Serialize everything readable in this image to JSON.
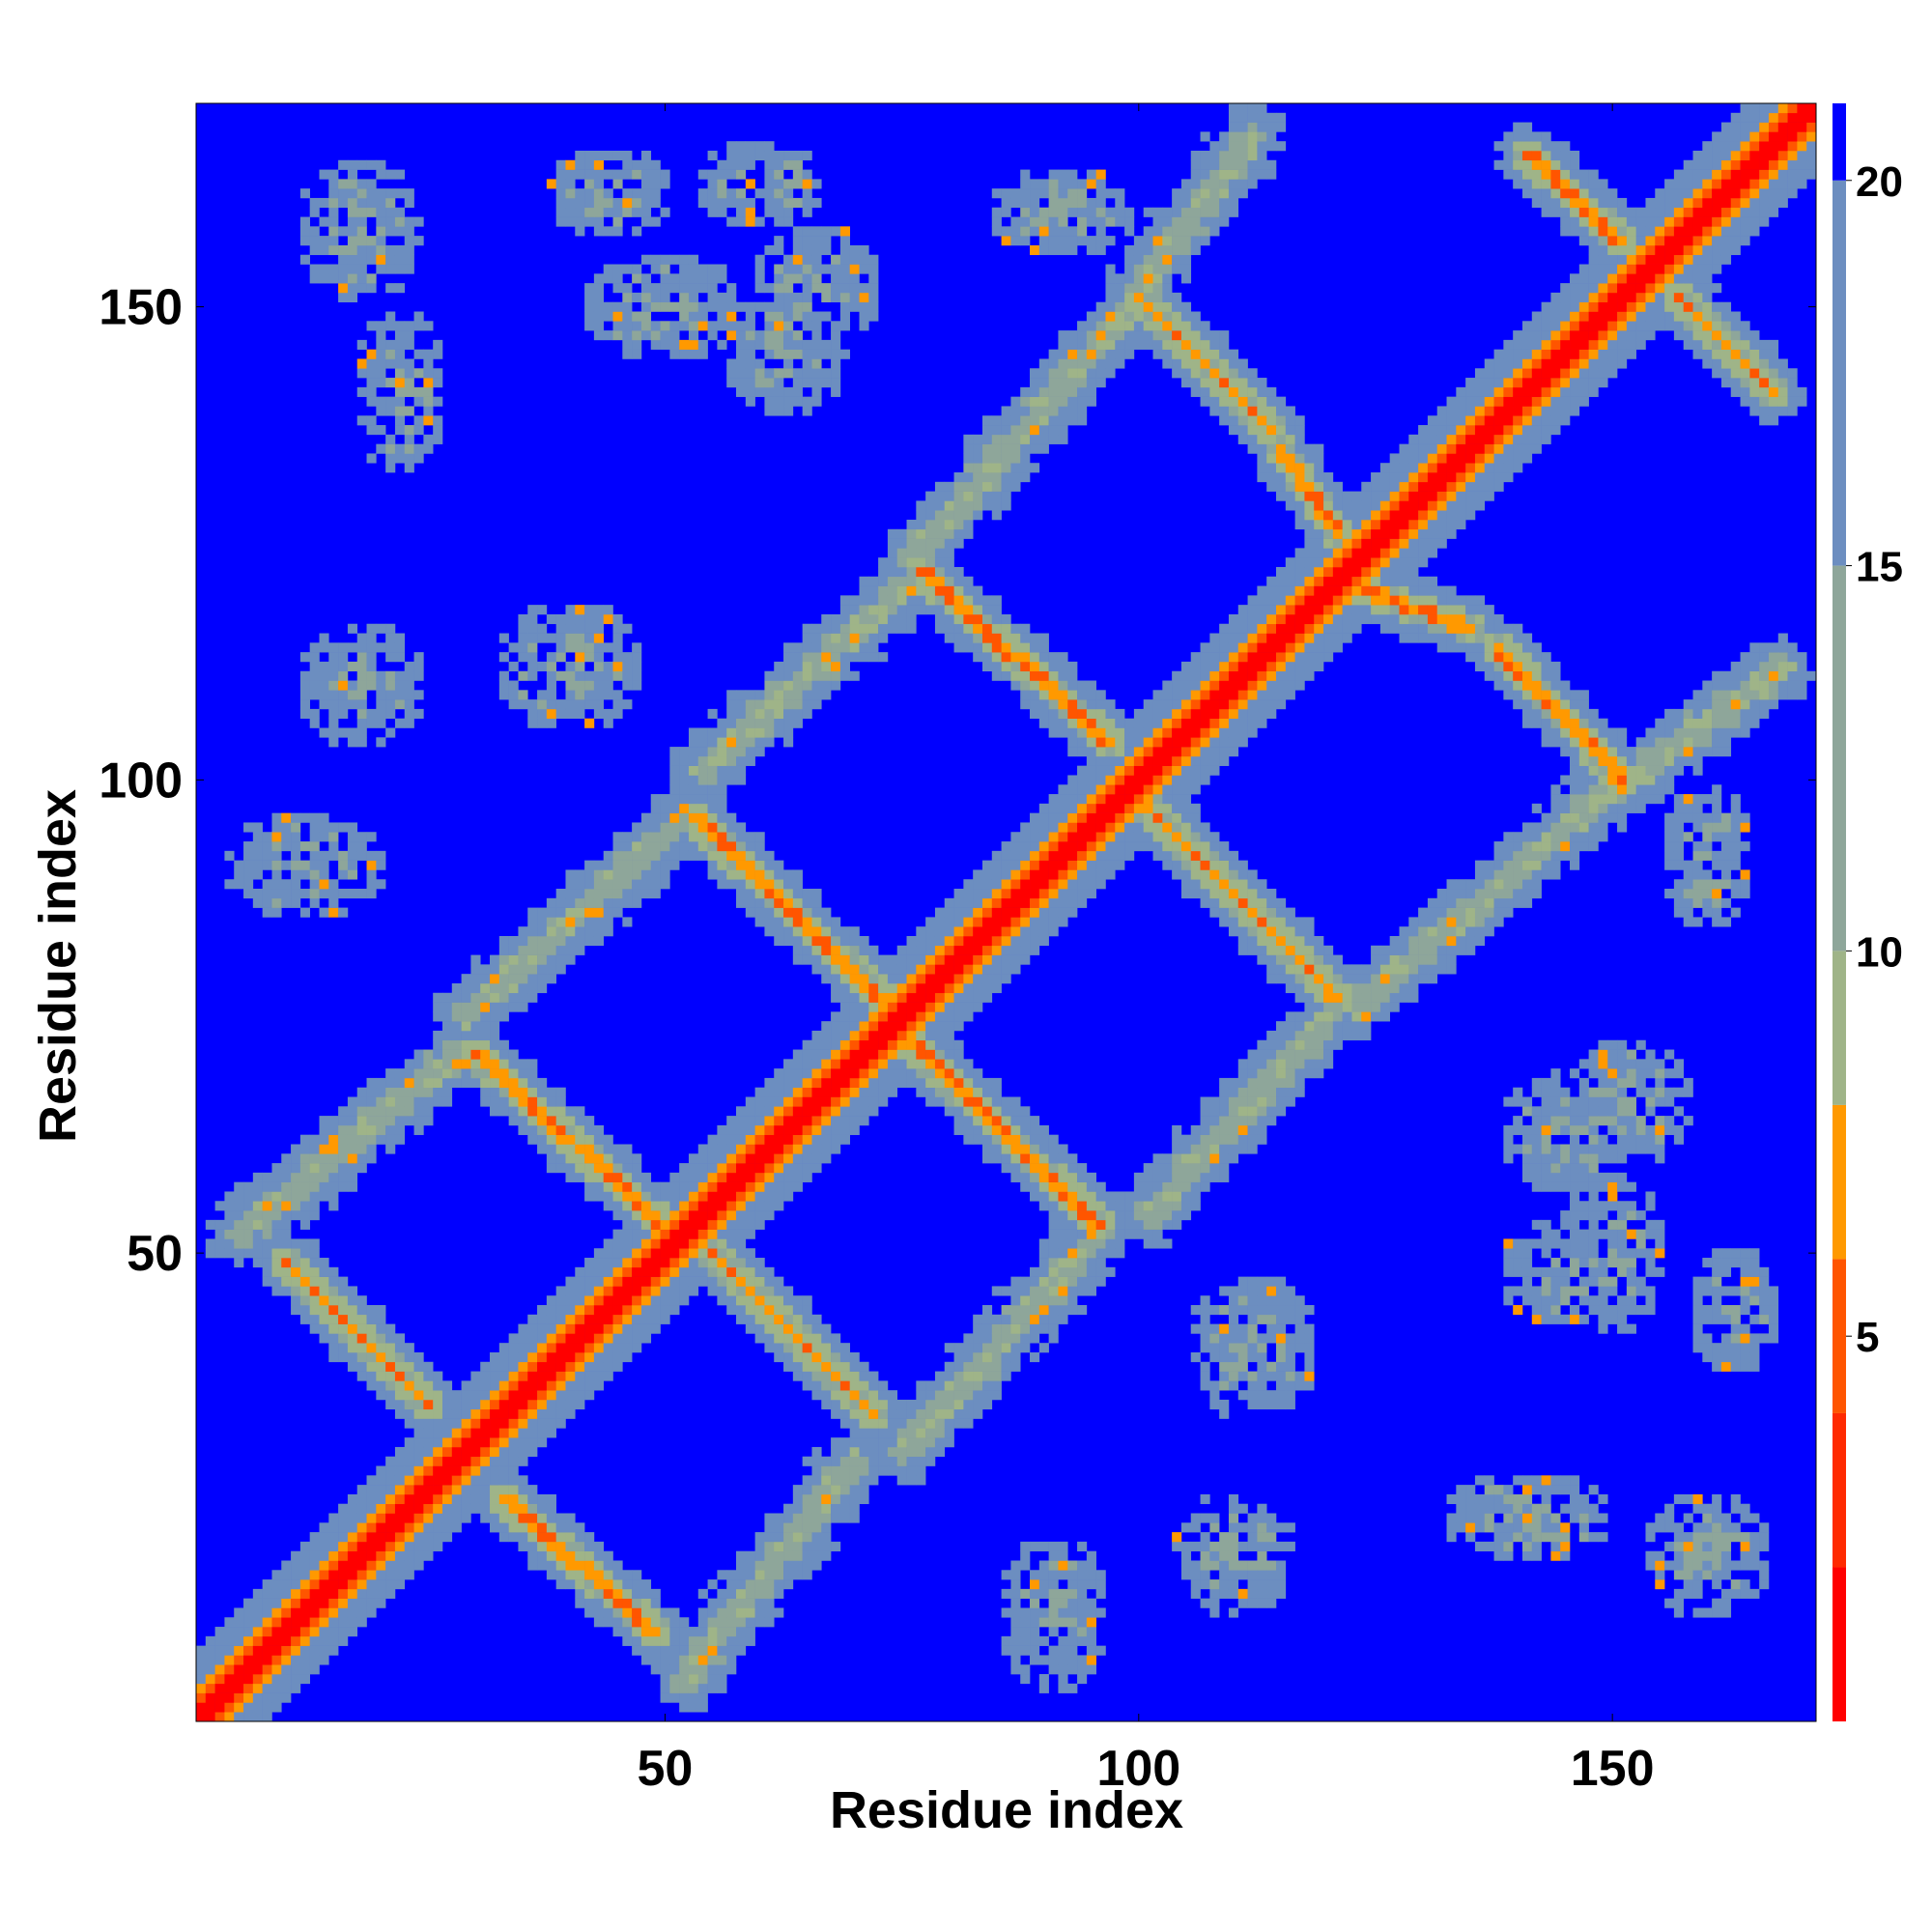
{
  "chart_data": {
    "type": "heatmap",
    "title": "",
    "xlabel": "Residue index",
    "ylabel": "Residue index",
    "xlim": [
      1,
      171
    ],
    "ylim": [
      1,
      171
    ],
    "x_ticks": [
      50,
      100,
      150
    ],
    "y_ticks": [
      50,
      100,
      150
    ],
    "colorbar": {
      "ticks": [
        5,
        10,
        15,
        20
      ],
      "range": [
        0,
        21
      ],
      "colors": [
        {
          "max": 2,
          "color": "#ff0000"
        },
        {
          "max": 4,
          "color": "#ff2a00"
        },
        {
          "max": 6,
          "color": "#ff5500"
        },
        {
          "max": 8,
          "color": "#ff9900"
        },
        {
          "max": 10,
          "color": "#9fb488"
        },
        {
          "max": 15,
          "color": "#8ea69a"
        },
        {
          "max": 20,
          "color": "#6c8ec0"
        },
        {
          "max": 21,
          "color": "#0000ff"
        }
      ]
    },
    "diagonal": {
      "from": 1,
      "to": 171
    },
    "hairpin_turns": [
      {
        "x": 23,
        "y": 23,
        "strand": 13
      },
      {
        "x": 52,
        "y": 52,
        "strand": 20
      },
      {
        "x": 74,
        "y": 74,
        "strand": 22
      },
      {
        "x": 99,
        "y": 99,
        "strand": 25
      },
      {
        "x": 122,
        "y": 122,
        "strand": 28
      },
      {
        "x": 153,
        "y": 153,
        "strand": 25
      }
    ],
    "antiparallel_bands": [
      {
        "from": [
          10,
          49
        ],
        "to": [
          25,
          34
        ]
      },
      {
        "from": [
          33,
          24
        ],
        "to": [
          49,
          10
        ]
      },
      {
        "from": [
          30,
          71
        ],
        "to": [
          51,
          52
        ]
      },
      {
        "from": [
          53,
          96
        ],
        "to": [
          74,
          76
        ]
      },
      {
        "from": [
          54,
          51
        ],
        "to": [
          72,
          33
        ]
      },
      {
        "from": [
          77,
          122
        ],
        "to": [
          97,
          104
        ]
      },
      {
        "from": [
          76,
          72
        ],
        "to": [
          96,
          53
        ]
      },
      {
        "from": [
          100,
          151
        ],
        "to": [
          114,
          137
        ]
      },
      {
        "from": [
          101,
          97
        ],
        "to": [
          121,
          77
        ]
      },
      {
        "from": [
          115,
          135
        ],
        "to": [
          121,
          126
        ]
      },
      {
        "from": [
          124,
          120
        ],
        "to": [
          135,
          116
        ]
      },
      {
        "from": [
          138,
          114
        ],
        "to": [
          151,
          100
        ]
      },
      {
        "from": [
          141,
          166
        ],
        "to": [
          151,
          157
        ]
      },
      {
        "from": [
          157,
          151
        ],
        "to": [
          167,
          141
        ]
      }
    ],
    "parallel_bands": [
      {
        "from": [
          5,
          52
        ],
        "to": [
          28,
          71
        ]
      },
      {
        "from": [
          29,
          75
        ],
        "to": [
          52,
          96
        ]
      },
      {
        "from": [
          54,
          101
        ],
        "to": [
          76,
          121
        ]
      },
      {
        "from": [
          76,
          123
        ],
        "to": [
          100,
          151
        ]
      },
      {
        "from": [
          100,
          152
        ],
        "to": [
          112,
          168
        ]
      },
      {
        "from": [
          52,
          5
        ],
        "to": [
          70,
          28
        ]
      },
      {
        "from": [
          75,
          29
        ],
        "to": [
          96,
          52
        ]
      },
      {
        "from": [
          101,
          54
        ],
        "to": [
          121,
          76
        ]
      },
      {
        "from": [
          123,
          76
        ],
        "to": [
          151,
          100
        ]
      },
      {
        "from": [
          152,
          100
        ],
        "to": [
          168,
          112
        ]
      }
    ],
    "diffuse_patches": [
      {
        "x": 18,
        "y": 158,
        "w": 14,
        "h": 16
      },
      {
        "x": 44,
        "y": 162,
        "w": 14,
        "h": 10
      },
      {
        "x": 60,
        "y": 163,
        "w": 14,
        "h": 10
      },
      {
        "x": 50,
        "y": 150,
        "w": 18,
        "h": 12
      },
      {
        "x": 63,
        "y": 145,
        "w": 14,
        "h": 14
      },
      {
        "x": 18,
        "y": 110,
        "w": 14,
        "h": 14
      },
      {
        "x": 12,
        "y": 91,
        "w": 18,
        "h": 12
      },
      {
        "x": 40,
        "y": 112,
        "w": 16,
        "h": 14
      },
      {
        "x": 160,
        "y": 18,
        "w": 14,
        "h": 14
      },
      {
        "x": 163,
        "y": 44,
        "w": 10,
        "h": 14
      },
      {
        "x": 150,
        "y": 50,
        "w": 12,
        "h": 18
      },
      {
        "x": 145,
        "y": 63,
        "w": 14,
        "h": 14
      },
      {
        "x": 110,
        "y": 18,
        "w": 14,
        "h": 14
      },
      {
        "x": 91,
        "y": 12,
        "w": 12,
        "h": 18
      },
      {
        "x": 112,
        "y": 40,
        "w": 14,
        "h": 16
      },
      {
        "x": 141,
        "y": 22,
        "w": 18,
        "h": 10
      },
      {
        "x": 152,
        "y": 66,
        "w": 14,
        "h": 14
      },
      {
        "x": 22,
        "y": 141,
        "w": 10,
        "h": 18
      },
      {
        "x": 66,
        "y": 152,
        "w": 14,
        "h": 14
      },
      {
        "x": 145,
        "y": 48,
        "w": 14,
        "h": 12
      },
      {
        "x": 160,
        "y": 92,
        "w": 10,
        "h": 16
      },
      {
        "x": 92,
        "y": 160,
        "w": 16,
        "h": 10
      }
    ]
  }
}
